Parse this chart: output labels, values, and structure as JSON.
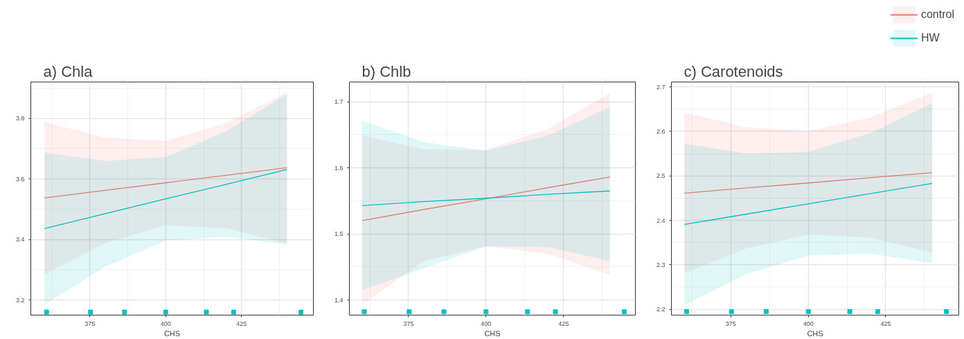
{
  "chart_data": [
    {
      "type": "line",
      "title": "a) Chla",
      "xlabel": "CHS",
      "xlim": [
        355.5,
        448.7
      ],
      "xticks": [
        375,
        400,
        425
      ],
      "ylim": [
        3.15,
        3.92
      ],
      "yticks": [
        3.2,
        3.4,
        3.6,
        3.8
      ],
      "grid": true,
      "legend": false,
      "series": [
        {
          "color": "#f8766d",
          "x": [
            360,
            380,
            400,
            420,
            440
          ],
          "values": [
            3.537,
            3.562,
            3.587,
            3.612,
            3.637
          ],
          "lower": [
            3.285,
            3.388,
            3.447,
            3.437,
            3.387
          ],
          "upper": [
            3.788,
            3.736,
            3.725,
            3.785,
            3.885
          ]
        },
        {
          "color": "#00bfc4",
          "x": [
            360,
            380,
            400,
            420,
            440
          ],
          "values": [
            3.436,
            3.485,
            3.534,
            3.582,
            3.631
          ],
          "lower": [
            3.185,
            3.31,
            3.396,
            3.409,
            3.383
          ],
          "upper": [
            3.687,
            3.659,
            3.672,
            3.758,
            3.88
          ]
        },
        {
          "type": "scatter",
          "color": "#00bfc4",
          "x": [
            360.7,
            375.2,
            386.4,
            400,
            413.4,
            422.4,
            444.6
          ],
          "values": [
            3.16,
            3.16,
            3.16,
            3.16,
            3.16,
            3.16,
            3.16
          ]
        }
      ]
    },
    {
      "type": "line",
      "title": "b) Chlb",
      "xlabel": "CHS",
      "xlim": [
        355.9,
        448.2
      ],
      "xticks": [
        375,
        400,
        425
      ],
      "ylim": [
        1.377,
        1.73
      ],
      "yticks": [
        1.4,
        1.5,
        1.6,
        1.7
      ],
      "grid": true,
      "legend": false,
      "series": [
        {
          "color": "#f8766d",
          "x": [
            360,
            380,
            400,
            420,
            440
          ],
          "values": [
            1.52,
            1.537,
            1.553,
            1.57,
            1.586
          ],
          "lower": [
            1.393,
            1.459,
            1.481,
            1.47,
            1.438
          ],
          "upper": [
            1.649,
            1.628,
            1.627,
            1.659,
            1.713
          ]
        },
        {
          "color": "#00bfc4",
          "x": [
            360,
            380,
            400,
            420,
            440
          ],
          "values": [
            1.543,
            1.549,
            1.554,
            1.56,
            1.565
          ],
          "lower": [
            1.415,
            1.448,
            1.481,
            1.48,
            1.459
          ],
          "upper": [
            1.671,
            1.639,
            1.626,
            1.649,
            1.692
          ]
        },
        {
          "type": "scatter",
          "color": "#00bfc4",
          "x": [
            360.7,
            375.2,
            386.4,
            400,
            413.4,
            422.4,
            444.6
          ],
          "values": [
            1.382,
            1.382,
            1.382,
            1.382,
            1.382,
            1.382,
            1.382
          ]
        }
      ]
    },
    {
      "type": "line",
      "title": "c) Carotenoids",
      "xlabel": "CHS",
      "xlim": [
        355.8,
        448.6
      ],
      "xticks": [
        375,
        400,
        425
      ],
      "ylim": [
        2.187,
        2.711
      ],
      "yticks": [
        2.2,
        2.3,
        2.4,
        2.5,
        2.6,
        2.7
      ],
      "grid": true,
      "legend": "top right",
      "series": [
        {
          "name": "control",
          "color": "#f8766d",
          "x": [
            360,
            380,
            400,
            420,
            440
          ],
          "values": [
            2.461,
            2.473,
            2.484,
            2.496,
            2.507
          ],
          "lower": [
            2.281,
            2.337,
            2.368,
            2.361,
            2.328
          ],
          "upper": [
            2.642,
            2.609,
            2.601,
            2.631,
            2.687
          ]
        },
        {
          "name": "HW",
          "color": "#00bfc4",
          "x": [
            360,
            380,
            400,
            420,
            440
          ],
          "values": [
            2.391,
            2.414,
            2.437,
            2.46,
            2.483
          ],
          "lower": [
            2.21,
            2.279,
            2.321,
            2.325,
            2.304
          ],
          "upper": [
            2.572,
            2.55,
            2.554,
            2.596,
            2.663
          ]
        },
        {
          "type": "scatter",
          "color": "#00bfc4",
          "x": [
            360.7,
            375.2,
            386.4,
            400,
            413.4,
            422.4,
            444.6
          ],
          "values": [
            2.195,
            2.195,
            2.195,
            2.195,
            2.195,
            2.195,
            2.195
          ]
        }
      ]
    }
  ]
}
